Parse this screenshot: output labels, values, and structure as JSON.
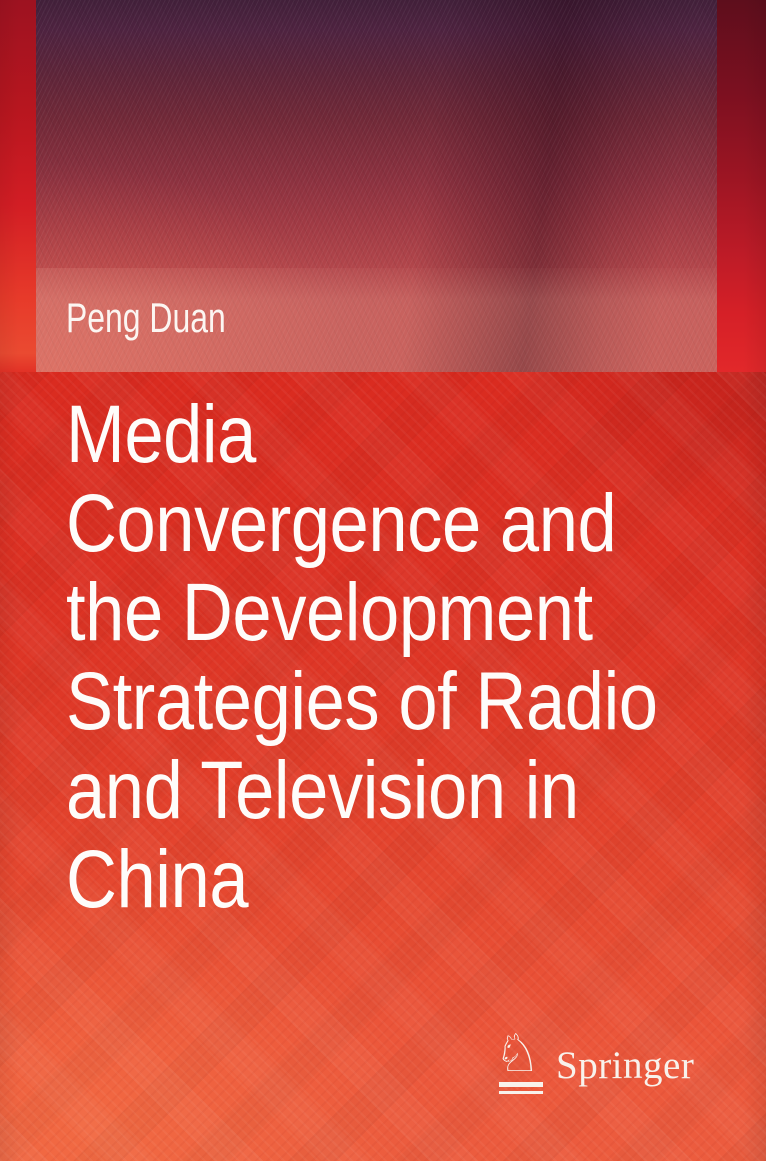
{
  "cover": {
    "author": "Peng Duan",
    "title_lines": [
      "Media",
      "Convergence and",
      "the Development",
      "Strategies of Radio",
      "and Television in",
      "China"
    ]
  },
  "publisher": {
    "name": "Springer",
    "knight_glyph": "♘"
  },
  "colors": {
    "top_dark_plum": "#43203a",
    "author_band_red": "#c25352",
    "title_band_red": "#dc2e21",
    "bottom_orange_red": "#ec5c3e",
    "spine_strip_red": "#d21d24",
    "text_white": "#fefcfa"
  }
}
